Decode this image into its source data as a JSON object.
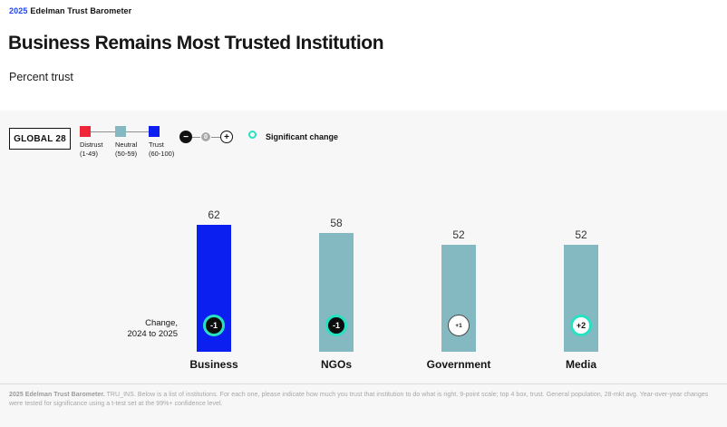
{
  "brand": {
    "year": "2025",
    "name": "Edelman Trust Barometer"
  },
  "header": {
    "title": "Business Remains Most Trusted Institution",
    "subtitle": "Percent trust"
  },
  "legend": {
    "scope_label": "GLOBAL 28",
    "scale": [
      {
        "label": "Distrust",
        "range": "(1-49)",
        "color": "#ee2637"
      },
      {
        "label": "Neutral",
        "range": "(50-59)",
        "color": "#85b9c1"
      },
      {
        "label": "Trust",
        "range": "(60-100)",
        "color": "#0a1ff0"
      }
    ],
    "stepper": {
      "minus": "−",
      "zero": "0",
      "plus": "+"
    },
    "significant_change_label": "Significant change",
    "significant_color": "#25e2c3"
  },
  "chart": {
    "change_note_line1": "Change,",
    "change_note_line2": "2024 to 2025"
  },
  "chart_data": {
    "type": "bar",
    "title": "Business Remains Most Trusted Institution",
    "ylabel": "Percent trust",
    "ylim": [
      0,
      100
    ],
    "categories": [
      "Business",
      "NGOs",
      "Government",
      "Media"
    ],
    "values": [
      62,
      58,
      52,
      52
    ],
    "changes": [
      "-1",
      "-1",
      "+1",
      "+2"
    ],
    "significant": [
      true,
      true,
      false,
      true
    ],
    "marker_style": [
      "dark",
      "dark",
      "light",
      "light"
    ],
    "bar_colors": [
      "#0a1ff0",
      "#85b9c1",
      "#85b9c1",
      "#85b9c1"
    ],
    "band_legend": [
      "Distrust (1-49)",
      "Neutral (50-59)",
      "Trust (60-100)"
    ],
    "scope": "GLOBAL 28"
  },
  "footer": {
    "bold_lead": "2025 Edelman Trust Barometer.",
    "text": " TRU_INS. Below is a list of institutions. For each one, please indicate how much you trust that institution to do what is right. 9-point scale; top 4 box, trust. General population, 28-mkt avg. Year-over-year changes were tested for significance using a t-test set at the 99%+ confidence level."
  }
}
